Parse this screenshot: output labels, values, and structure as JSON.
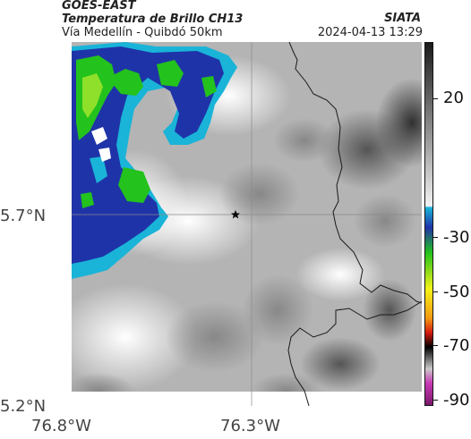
{
  "header": {
    "satellite": "GOES-EAST",
    "product": "Temperatura de Brillo CH13",
    "route": "Vía Medellín - Quibdó 50km",
    "agency": "SIATA",
    "timestamp": "2024-04-13 13:29"
  },
  "map": {
    "lat_labels": [
      "5.7°N",
      "5.2°N"
    ],
    "lon_labels": [
      "76.8°W",
      "76.3°W"
    ],
    "marker_icon": "star-icon"
  },
  "colorbar": {
    "tick_labels": [
      "20",
      "-30",
      "-50",
      "-70",
      "-90"
    ],
    "colors": {
      "gray_dark": "#1a1a1a",
      "gray_light": "#f2f2f2",
      "cyan": "#19b4d8",
      "blue": "#1f33a8",
      "green": "#23c21d",
      "yellow": "#f4f218",
      "red": "#d61a10",
      "black": "#000000",
      "magenta": "#c838b6"
    }
  }
}
